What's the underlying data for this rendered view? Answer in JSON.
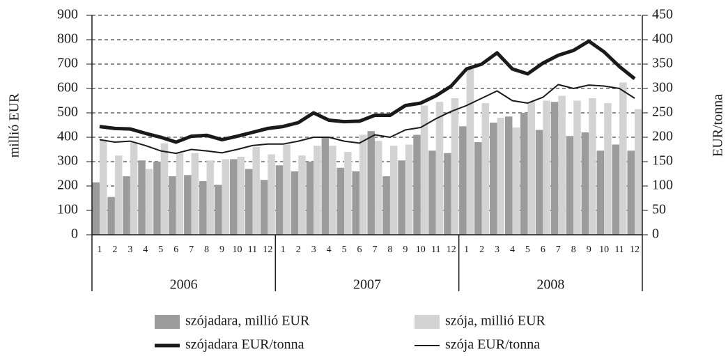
{
  "chart_data": {
    "type": "bar-line",
    "ylabel": "millió EUR",
    "y2label": "EUR/tonna",
    "categories": [
      "1",
      "2",
      "3",
      "4",
      "5",
      "6",
      "7",
      "8",
      "9",
      "10",
      "11",
      "12",
      "1",
      "2",
      "3",
      "4",
      "5",
      "6",
      "7",
      "8",
      "9",
      "10",
      "11",
      "12",
      "1",
      "2",
      "3",
      "4",
      "5",
      "6",
      "7",
      "8",
      "9",
      "10",
      "11",
      "12"
    ],
    "years": [
      "2006",
      "2007",
      "2008"
    ],
    "ylim": [
      0,
      900
    ],
    "yticks": [
      0,
      100,
      200,
      300,
      400,
      500,
      600,
      700,
      800,
      900
    ],
    "y2lim": [
      0,
      450
    ],
    "y2ticks": [
      0,
      50,
      100,
      150,
      200,
      250,
      300,
      350,
      400,
      450
    ],
    "grid": true,
    "series": [
      {
        "name": "szójadara, millió EUR",
        "kind": "bar",
        "color": "#9b9b9b",
        "values": [
          215,
          155,
          240,
          305,
          300,
          240,
          245,
          220,
          205,
          310,
          270,
          225,
          285,
          260,
          300,
          400,
          275,
          260,
          425,
          240,
          305,
          410,
          345,
          335,
          445,
          380,
          460,
          485,
          500,
          430,
          545,
          405,
          420,
          345,
          370,
          345
        ]
      },
      {
        "name": "szója, millió EUR",
        "kind": "bar",
        "color": "#d3d3d3",
        "values": [
          390,
          325,
          380,
          270,
          375,
          335,
          335,
          305,
          310,
          320,
          360,
          330,
          370,
          325,
          365,
          365,
          340,
          410,
          385,
          365,
          370,
          530,
          545,
          560,
          680,
          540,
          480,
          440,
          545,
          550,
          570,
          550,
          560,
          540,
          625,
          515
        ]
      },
      {
        "name": "szójadara EUR/tonna",
        "kind": "line",
        "axis": "y2",
        "color": "#1a1a1a",
        "width": 5,
        "values": [
          222,
          218,
          217,
          208,
          200,
          190,
          202,
          204,
          195,
          202,
          210,
          218,
          222,
          230,
          250,
          235,
          232,
          233,
          245,
          245,
          265,
          270,
          285,
          305,
          340,
          350,
          373,
          340,
          330,
          352,
          368,
          378,
          397,
          375,
          345,
          320
        ]
      },
      {
        "name": "szója EUR/tonna",
        "kind": "line",
        "axis": "y2",
        "color": "#1a1a1a",
        "width": 2,
        "values": [
          195,
          190,
          192,
          183,
          172,
          167,
          175,
          172,
          168,
          175,
          183,
          186,
          186,
          192,
          200,
          200,
          192,
          188,
          205,
          200,
          215,
          220,
          238,
          253,
          265,
          280,
          295,
          275,
          270,
          282,
          308,
          300,
          307,
          305,
          300,
          280
        ]
      }
    ]
  }
}
